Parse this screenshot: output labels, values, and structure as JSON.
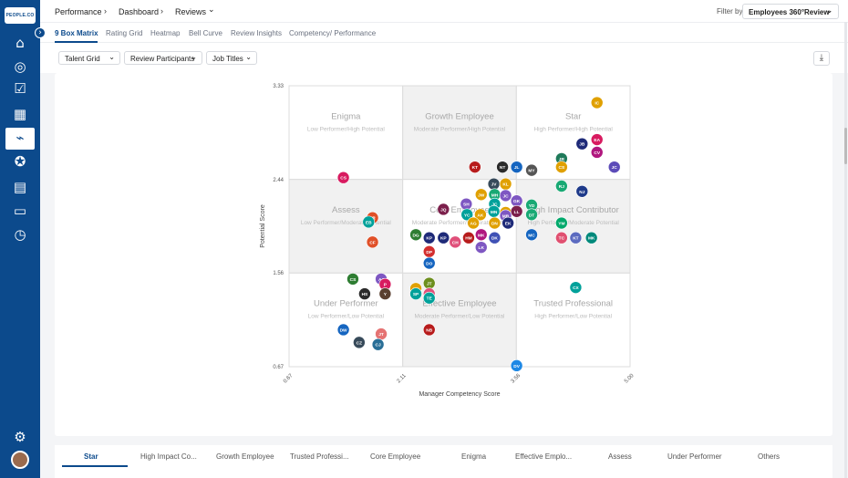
{
  "app": {
    "logo_text": "PEOPLE.CO"
  },
  "sidebar": {
    "collapse_icon": "chevron-right-icon",
    "items": [
      {
        "icon": "home-icon",
        "glyph": "⌂"
      },
      {
        "icon": "target-icon",
        "glyph": "◎"
      },
      {
        "icon": "checklist-icon",
        "glyph": "☑"
      },
      {
        "icon": "calendar-icon",
        "glyph": "▦"
      },
      {
        "icon": "chart-icon",
        "glyph": "⌁",
        "active": true
      },
      {
        "icon": "award-icon",
        "glyph": "✪"
      },
      {
        "icon": "card-icon",
        "glyph": "▤"
      },
      {
        "icon": "briefcase-icon",
        "glyph": "▭"
      },
      {
        "icon": "stopwatch-icon",
        "glyph": "◷"
      }
    ],
    "settings_glyph": "⚙"
  },
  "breadcrumb": {
    "item1": "Performance",
    "item2": "Dashboard",
    "item3": "Reviews",
    "sep": "›",
    "dropdown": "⌄"
  },
  "filter": {
    "label": "Filter by",
    "value": "Employees 360°Review",
    "chevron": "⌄"
  },
  "tabs": [
    "9 Box Matrix",
    "Rating Grid",
    "Heatmap",
    "Bell Curve",
    "Review Insights",
    "Competency/ Performance"
  ],
  "toolbar": {
    "talent_grid": "Talent Grid",
    "review_participants": "Review Participants",
    "job_titles": "Job Titles",
    "chevron": "⌄",
    "download_glyph": "⤓"
  },
  "chart_data": {
    "type": "scatter",
    "xlabel": "Manager Competency Score",
    "ylabel": "Potential Score",
    "x_ticks": [
      "0.67",
      "2.11",
      "3.56",
      "5.00"
    ],
    "x_tick_values": [
      0.67,
      2.11,
      3.56,
      5.0
    ],
    "y_ticks": [
      "3.33",
      "2.44",
      "1.56",
      "0.67"
    ],
    "y_tick_values": [
      3.33,
      2.44,
      1.56,
      0.67
    ],
    "xlim": [
      0.67,
      5.0
    ],
    "ylim": [
      0.67,
      3.33
    ],
    "boxes": [
      {
        "title": "Enigma",
        "subtitle": "Low Performer/High Potential",
        "col": 0,
        "row": 0,
        "shade": false
      },
      {
        "title": "Growth Employee",
        "subtitle": "Moderate Performer/High Potential",
        "col": 1,
        "row": 0,
        "shade": true
      },
      {
        "title": "Star",
        "subtitle": "High Performer/High Potential",
        "col": 2,
        "row": 0,
        "shade": false
      },
      {
        "title": "Assess",
        "subtitle": "Low Performer/Moderate Potential",
        "col": 0,
        "row": 1,
        "shade": true
      },
      {
        "title": "Core Employee",
        "subtitle": "Moderate Performer/Moderate Pot...",
        "col": 1,
        "row": 1,
        "shade": false
      },
      {
        "title": "High Impact Contributor",
        "subtitle": "High Performer/Moderate Potential",
        "col": 2,
        "row": 1,
        "shade": true
      },
      {
        "title": "Under Performer",
        "subtitle": "Low Performer/Low Potential",
        "col": 0,
        "row": 2,
        "shade": false
      },
      {
        "title": "Effective Employee",
        "subtitle": "Moderate Performer/Low Potential",
        "col": 1,
        "row": 2,
        "shade": true
      },
      {
        "title": "Trusted Professional",
        "subtitle": "High Performer/Low Potential",
        "col": 2,
        "row": 2,
        "shade": false
      }
    ],
    "points": [
      {
        "label": "IC",
        "x": 4.58,
        "y": 3.17,
        "color": "#e0a000"
      },
      {
        "label": "EA",
        "x": 4.58,
        "y": 2.82,
        "color": "#d81b60"
      },
      {
        "label": "JB",
        "x": 4.39,
        "y": 2.78,
        "color": "#1e2a78"
      },
      {
        "label": "CV",
        "x": 4.58,
        "y": 2.7,
        "color": "#b0177e"
      },
      {
        "label": "JR",
        "x": 4.13,
        "y": 2.64,
        "color": "#1f7a5a"
      },
      {
        "label": "JC",
        "x": 4.8,
        "y": 2.56,
        "color": "#5c4bb8"
      },
      {
        "label": "CS",
        "x": 4.13,
        "y": 2.56,
        "color": "#e0a000"
      },
      {
        "label": "KT",
        "x": 3.03,
        "y": 2.56,
        "color": "#b71c1c"
      },
      {
        "label": "NT",
        "x": 3.38,
        "y": 2.56,
        "color": "#2b2b2b"
      },
      {
        "label": "JL",
        "x": 3.56,
        "y": 2.56,
        "color": "#1565c0"
      },
      {
        "label": "MY",
        "x": 3.75,
        "y": 2.53,
        "color": "#555"
      },
      {
        "label": "CS",
        "x": 1.36,
        "y": 2.46,
        "color": "#d81b60"
      },
      {
        "label": "JV",
        "x": 3.27,
        "y": 2.4,
        "color": "#374a5a"
      },
      {
        "label": "KL",
        "x": 3.42,
        "y": 2.4,
        "color": "#e0a000"
      },
      {
        "label": "RJ",
        "x": 4.13,
        "y": 2.38,
        "color": "#19a974"
      },
      {
        "label": "NJ",
        "x": 4.39,
        "y": 2.33,
        "color": "#1e3a8a"
      },
      {
        "label": "JW",
        "x": 3.11,
        "y": 2.3,
        "color": "#e0a000"
      },
      {
        "label": "MH",
        "x": 3.28,
        "y": 2.3,
        "color": "#19a974"
      },
      {
        "label": "JC",
        "x": 3.42,
        "y": 2.29,
        "color": "#7e57c2"
      },
      {
        "label": "SH",
        "x": 2.92,
        "y": 2.21,
        "color": "#7e57c2"
      },
      {
        "label": "JC",
        "x": 3.28,
        "y": 2.21,
        "color": "#00a19a"
      },
      {
        "label": "GK",
        "x": 3.56,
        "y": 2.24,
        "color": "#7e57c2"
      },
      {
        "label": "JQ",
        "x": 2.63,
        "y": 2.16,
        "color": "#7b1f4b"
      },
      {
        "label": "YD",
        "x": 3.75,
        "y": 2.2,
        "color": "#19a974"
      },
      {
        "label": "YC",
        "x": 2.93,
        "y": 2.11,
        "color": "#00a19a"
      },
      {
        "label": "AK",
        "x": 3.1,
        "y": 2.11,
        "color": "#e0a000"
      },
      {
        "label": "MN",
        "x": 3.27,
        "y": 2.14,
        "color": "#00a19a"
      },
      {
        "label": "DH",
        "x": 3.42,
        "y": 2.13,
        "color": "#e0a000"
      },
      {
        "label": "LL",
        "x": 3.56,
        "y": 2.14,
        "color": "#7b1f4b"
      },
      {
        "label": "MR",
        "x": 3.42,
        "y": 2.1,
        "color": "#7e57c2"
      },
      {
        "label": "DT",
        "x": 3.75,
        "y": 2.11,
        "color": "#19a974"
      },
      {
        "label": "LR",
        "x": 1.73,
        "y": 2.08,
        "color": "#e05028"
      },
      {
        "label": "EB",
        "x": 1.68,
        "y": 2.04,
        "color": "#00a19a"
      },
      {
        "label": "AG",
        "x": 3.01,
        "y": 2.03,
        "color": "#e0a000"
      },
      {
        "label": "DN",
        "x": 3.28,
        "y": 2.03,
        "color": "#e0a000"
      },
      {
        "label": "EK",
        "x": 3.45,
        "y": 2.03,
        "color": "#1e2a78"
      },
      {
        "label": "YM",
        "x": 4.13,
        "y": 2.03,
        "color": "#00a86b"
      },
      {
        "label": "DG",
        "x": 2.28,
        "y": 1.92,
        "color": "#2e7d32"
      },
      {
        "label": "KP",
        "x": 2.45,
        "y": 1.89,
        "color": "#1e2a78"
      },
      {
        "label": "KP",
        "x": 2.63,
        "y": 1.89,
        "color": "#1e2a78"
      },
      {
        "label": "HM",
        "x": 2.95,
        "y": 1.89,
        "color": "#b71c1c"
      },
      {
        "label": "MK",
        "x": 3.11,
        "y": 1.92,
        "color": "#b0177e"
      },
      {
        "label": "DK",
        "x": 3.28,
        "y": 1.89,
        "color": "#3f51b5"
      },
      {
        "label": "MC",
        "x": 3.75,
        "y": 1.92,
        "color": "#1565c0"
      },
      {
        "label": "TC",
        "x": 4.13,
        "y": 1.89,
        "color": "#e05070"
      },
      {
        "label": "KT",
        "x": 4.31,
        "y": 1.89,
        "color": "#5c6bc0"
      },
      {
        "label": "MK",
        "x": 4.51,
        "y": 1.89,
        "color": "#00897b"
      },
      {
        "label": "CF",
        "x": 1.73,
        "y": 1.85,
        "color": "#e05028"
      },
      {
        "label": "CH",
        "x": 2.78,
        "y": 1.85,
        "color": "#e0507a"
      },
      {
        "label": "LK",
        "x": 3.11,
        "y": 1.8,
        "color": "#7e57c2"
      },
      {
        "label": "DP",
        "x": 2.45,
        "y": 1.76,
        "color": "#d32f2f"
      },
      {
        "label": "DO",
        "x": 2.45,
        "y": 1.65,
        "color": "#1565c0"
      },
      {
        "label": "CS",
        "x": 1.48,
        "y": 1.5,
        "color": "#2e7d32"
      },
      {
        "label": "AJ",
        "x": 1.84,
        "y": 1.5,
        "color": "#7e57c2"
      },
      {
        "label": "P",
        "x": 1.89,
        "y": 1.45,
        "color": "#d81b60"
      },
      {
        "label": "JT",
        "x": 2.45,
        "y": 1.46,
        "color": "#6d8f1e"
      },
      {
        "label": "RT",
        "x": 2.28,
        "y": 1.41,
        "color": "#e0a000"
      },
      {
        "label": "CX",
        "x": 4.31,
        "y": 1.42,
        "color": "#00a19a"
      },
      {
        "label": "HS",
        "x": 1.63,
        "y": 1.36,
        "color": "#2b2b2b"
      },
      {
        "label": "Y",
        "x": 1.89,
        "y": 1.36,
        "color": "#5a4030"
      },
      {
        "label": "SP",
        "x": 2.28,
        "y": 1.36,
        "color": "#00a19a"
      },
      {
        "label": "SI",
        "x": 2.45,
        "y": 1.36,
        "color": "#e0507a"
      },
      {
        "label": "TE",
        "x": 2.45,
        "y": 1.32,
        "color": "#00a19a"
      },
      {
        "label": "NB",
        "x": 2.45,
        "y": 1.02,
        "color": "#b71c1c"
      },
      {
        "label": "DW",
        "x": 1.36,
        "y": 1.02,
        "color": "#1565c0"
      },
      {
        "label": "JT",
        "x": 1.84,
        "y": 0.98,
        "color": "#e57373"
      },
      {
        "label": "CZ",
        "x": 1.56,
        "y": 0.9,
        "color": "#374a5a"
      },
      {
        "label": "CJ",
        "x": 1.8,
        "y": 0.88,
        "color": "#2a6f97"
      },
      {
        "label": "DV",
        "x": 3.56,
        "y": 0.68,
        "color": "#1e88e5"
      }
    ]
  },
  "bottom_tabs": [
    "Star",
    "High Impact Co...",
    "Growth Employee",
    "Trusted Professi...",
    "Core Employee",
    "Enigma",
    "Effective Emplo...",
    "Assess",
    "Under Performer",
    "Others"
  ]
}
